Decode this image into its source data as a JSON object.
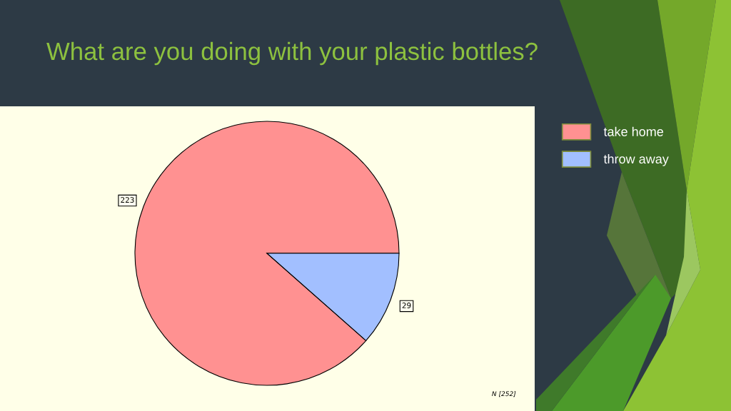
{
  "chart_data": {
    "type": "pie",
    "title": "What are you doing with your plastic bottles?",
    "categories": [
      "take home",
      "throw away"
    ],
    "values": [
      223,
      29
    ],
    "colors": [
      "#ff9191",
      "#a2bfff"
    ],
    "data_labels": true,
    "legend": "top right",
    "annotations": [
      "N [252]"
    ]
  }
}
